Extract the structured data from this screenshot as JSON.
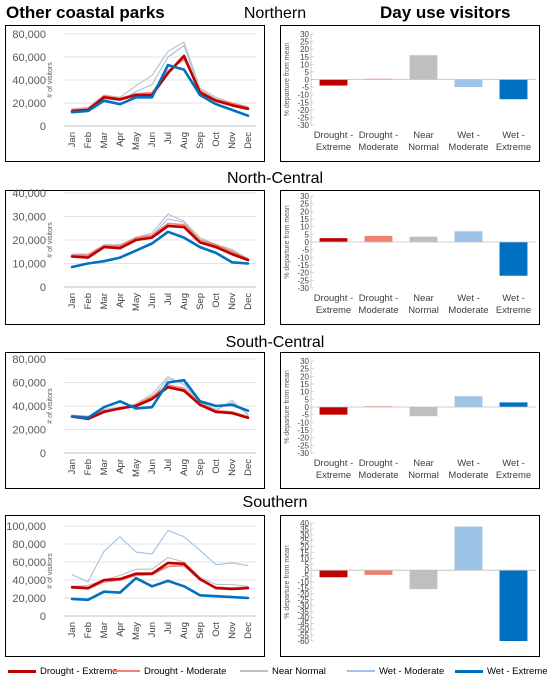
{
  "headers": {
    "left": "Other coastal parks",
    "right": "Day use visitors"
  },
  "months": [
    "Jan",
    "Feb",
    "Mar",
    "Apr",
    "May",
    "Jun",
    "Jul",
    "Aug",
    "Sep",
    "Oct",
    "Nov",
    "Dec"
  ],
  "bar_categories": [
    "Drought - Extreme",
    "Drought - Moderate",
    "Near Normal",
    "Wet - Moderate",
    "Wet - Extreme"
  ],
  "line_ylabel": "# of visitors",
  "bar_ylabel": "% departure from mean",
  "series_names": [
    "Drought - Extreme",
    "Drought - Moderate",
    "Near Normal",
    "Wet - Moderate",
    "Wet - Extreme"
  ],
  "colors": {
    "drought_extreme": "#c00000",
    "drought_moderate": "#f08070",
    "near_normal": "#bfbfbf",
    "wet_moderate": "#9dc3e6",
    "wet_extreme": "#0070c0"
  },
  "chart_data": [
    {
      "region": "Northern",
      "line": {
        "type": "line",
        "ylim": [
          0,
          80000
        ],
        "yticks": [
          0,
          20000,
          40000,
          60000,
          80000
        ],
        "yticklabels": [
          "0",
          "20,000",
          "40,000",
          "60,000",
          "80,000"
        ],
        "series": [
          {
            "name": "Drought - Extreme",
            "values": [
              13000,
              14000,
              25000,
              23000,
              27000,
              27000,
              46000,
              61000,
              29000,
              22000,
              18000,
              15000
            ]
          },
          {
            "name": "Drought - Moderate",
            "values": [
              14000,
              15000,
              26000,
              24000,
              28000,
              29000,
              48000,
              58000,
              31000,
              23000,
              20000,
              16000
            ]
          },
          {
            "name": "Near Normal",
            "values": [
              15000,
              16000,
              27000,
              25000,
              35000,
              44000,
              65000,
              73000,
              33000,
              25000,
              20000,
              17000
            ]
          },
          {
            "name": "Wet - Moderate",
            "values": [
              14000,
              15000,
              24000,
              22000,
              30000,
              36000,
              60000,
              70000,
              30000,
              23000,
              19000,
              16000
            ]
          },
          {
            "name": "Wet - Extreme",
            "values": [
              12000,
              13000,
              22000,
              19000,
              25000,
              25000,
              53000,
              49000,
              27000,
              19000,
              14000,
              9000
            ]
          }
        ]
      },
      "bar": {
        "type": "bar",
        "ylim": [
          -30,
          30
        ],
        "yticks": [
          -30,
          -25,
          -20,
          -15,
          -10,
          -5,
          0,
          5,
          10,
          15,
          20,
          25,
          30
        ],
        "values": [
          -4,
          0.5,
          16,
          -5,
          -13
        ]
      }
    },
    {
      "region": "North-Central",
      "line": {
        "type": "line",
        "ylim": [
          0,
          40000
        ],
        "yticks": [
          0,
          10000,
          20000,
          30000,
          40000
        ],
        "yticklabels": [
          "0",
          "10,000",
          "20,000",
          "30,000",
          "40,000"
        ],
        "series": [
          {
            "name": "Drought - Extreme",
            "values": [
              13000,
              12500,
              17000,
              16500,
              20000,
              21000,
              26000,
              25500,
              19000,
              17000,
              14000,
              11500
            ]
          },
          {
            "name": "Drought - Moderate",
            "values": [
              13500,
              13500,
              17500,
              17500,
              21000,
              22000,
              27000,
              26500,
              20000,
              18000,
              15000,
              12000
            ]
          },
          {
            "name": "Near Normal",
            "values": [
              14000,
              14000,
              18000,
              18000,
              21000,
              23000,
              31000,
              28000,
              21000,
              18000,
              16000,
              12000
            ]
          },
          {
            "name": "Wet - Moderate",
            "values": [
              13500,
              13500,
              17500,
              17000,
              20500,
              22000,
              29000,
              27500,
              20000,
              17500,
              15500,
              11500
            ]
          },
          {
            "name": "Wet - Extreme",
            "values": [
              8500,
              10000,
              11000,
              12500,
              15500,
              18500,
              23500,
              21000,
              17000,
              14500,
              10500,
              10000
            ]
          }
        ]
      },
      "bar": {
        "type": "bar",
        "ylim": [
          -30,
          30
        ],
        "yticks": [
          -30,
          -25,
          -20,
          -15,
          -10,
          -5,
          0,
          5,
          10,
          15,
          20,
          25,
          30
        ],
        "values": [
          2.5,
          4,
          3.5,
          7,
          -22
        ]
      }
    },
    {
      "region": "South-Central",
      "line": {
        "type": "line",
        "ylim": [
          0,
          80000
        ],
        "yticks": [
          0,
          20000,
          40000,
          60000,
          80000
        ],
        "yticklabels": [
          "0",
          "20,000",
          "40,000",
          "60,000",
          "80,000"
        ],
        "series": [
          {
            "name": "Drought - Extreme",
            "values": [
              31000,
              29000,
              35000,
              38000,
              40000,
              46000,
              56000,
              53000,
              41000,
              35000,
              34000,
              30000
            ]
          },
          {
            "name": "Drought - Moderate",
            "values": [
              32000,
              31000,
              36000,
              37000,
              41000,
              48000,
              58000,
              55000,
              42000,
              36000,
              35000,
              31000
            ]
          },
          {
            "name": "Near Normal",
            "values": [
              32000,
              30000,
              36000,
              38000,
              42000,
              50000,
              65000,
              58000,
              42000,
              36000,
              45000,
              32000
            ]
          },
          {
            "name": "Wet - Moderate",
            "values": [
              31000,
              31000,
              37000,
              39000,
              41000,
              47000,
              63000,
              60000,
              43000,
              37000,
              43000,
              33000
            ]
          },
          {
            "name": "Wet - Extreme",
            "values": [
              31000,
              30000,
              39000,
              44000,
              38000,
              39000,
              60000,
              62000,
              44000,
              40000,
              41000,
              36000
            ]
          }
        ]
      },
      "bar": {
        "type": "bar",
        "ylim": [
          -30,
          30
        ],
        "yticks": [
          -30,
          -25,
          -20,
          -15,
          -10,
          -5,
          0,
          5,
          10,
          15,
          20,
          25,
          30
        ],
        "values": [
          -5,
          0.5,
          -6,
          7,
          3
        ]
      }
    },
    {
      "region": "Southern",
      "line": {
        "type": "line",
        "ylim": [
          0,
          100000
        ],
        "yticks": [
          0,
          20000,
          40000,
          60000,
          80000,
          100000
        ],
        "yticklabels": [
          "0",
          "20,000",
          "40,000",
          "60,000",
          "80,000",
          "100,000"
        ],
        "series": [
          {
            "name": "Drought - Extreme",
            "values": [
              32000,
              31000,
              40000,
              41000,
              47000,
              47000,
              59000,
              58000,
              41000,
              31000,
              30000,
              31000
            ]
          },
          {
            "name": "Drought - Moderate",
            "values": [
              31000,
              30000,
              38000,
              40000,
              45000,
              46000,
              55000,
              56000,
              40000,
              32000,
              31000,
              32000
            ]
          },
          {
            "name": "Near Normal",
            "values": [
              33000,
              34000,
              40000,
              45000,
              52000,
              52000,
              65000,
              60000,
              43000,
              35000,
              35000,
              33000
            ]
          },
          {
            "name": "Wet - Moderate",
            "values": [
              46000,
              38000,
              72000,
              88000,
              71000,
              69000,
              95000,
              88000,
              73000,
              57000,
              59000,
              56000
            ]
          },
          {
            "name": "Wet - Extreme",
            "values": [
              19000,
              18000,
              27000,
              26000,
              42000,
              33000,
              39000,
              33000,
              23000,
              22000,
              21000,
              20000
            ]
          }
        ]
      },
      "bar": {
        "type": "bar",
        "ylim": [
          -60,
          40
        ],
        "yticks": [
          -60,
          -55,
          -50,
          -45,
          -40,
          -35,
          -30,
          -25,
          -20,
          -15,
          -10,
          -5,
          0,
          5,
          10,
          15,
          20,
          25,
          30,
          35,
          40
        ],
        "values": [
          -6,
          -4,
          -16,
          37,
          -60
        ]
      }
    }
  ]
}
